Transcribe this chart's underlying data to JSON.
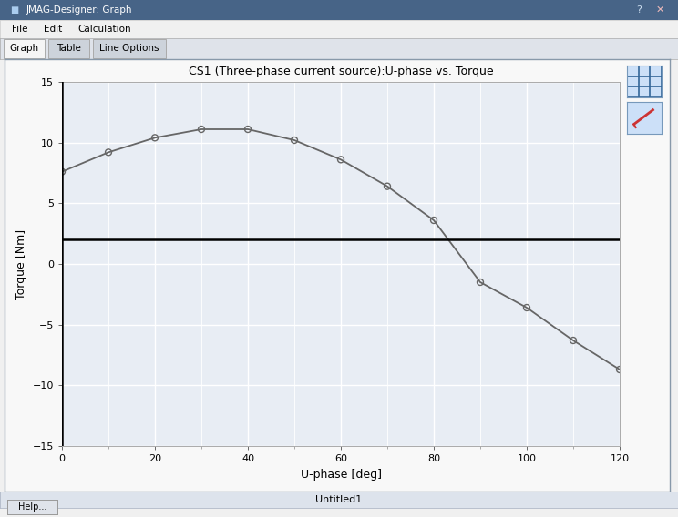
{
  "title": "CS1 (Three-phase current source):U-phase vs. Torque",
  "xlabel": "U-phase [deg]",
  "ylabel": "Torque [Nm]",
  "xlim": [
    0,
    120
  ],
  "ylim": [
    -15,
    15
  ],
  "xticks": [
    0,
    20,
    40,
    60,
    80,
    100,
    120
  ],
  "yticks": [
    -15,
    -10,
    -5,
    0,
    5,
    10,
    15
  ],
  "x_minor": [
    10,
    30,
    50,
    70,
    90,
    110
  ],
  "y_minor": [],
  "x_data": [
    0,
    10,
    20,
    30,
    40,
    50,
    60,
    70,
    80,
    90,
    100,
    110,
    120
  ],
  "y_data": [
    7.6,
    9.2,
    10.4,
    11.1,
    11.1,
    10.2,
    8.6,
    6.4,
    3.6,
    -1.5,
    -3.6,
    -6.3,
    -8.7
  ],
  "line_color": "#666666",
  "marker_facecolor": "none",
  "marker_edgecolor": "#666666",
  "marker_size": 5,
  "plot_bg_color": "#e8edf4",
  "grid_color": "#ffffff",
  "grid_linewidth": 1.0,
  "hline_y": 2.0,
  "hline_color": "#000000",
  "hline_linewidth": 1.8,
  "vline_x": 0,
  "vline_color": "#000000",
  "vline_linewidth": 1.8,
  "subtitle": "Untitled1",
  "window_title": "JMAG-Designer: Graph",
  "window_bg": "#f0f0f0",
  "titlebar_bg": "#476487",
  "titlebar_text_color": "#ffffff",
  "menubar_bg": "#f0f0f0",
  "tabbar_bg": "#dfe3ea",
  "active_tab_bg": "#f5f5f5",
  "inactive_tab_bg": "#cdd3db",
  "statusbar_bg": "#dde3ec",
  "statusbar_border": "#b0b8c8",
  "tab_labels": [
    "Graph",
    "Table",
    "Line Options"
  ],
  "help_btn_bg": "#dfe3ea",
  "icon_btn_bg": "#cce0f8",
  "outer_border": "#8899aa",
  "title_fontsize": 9,
  "label_fontsize": 9,
  "tick_fontsize": 8
}
